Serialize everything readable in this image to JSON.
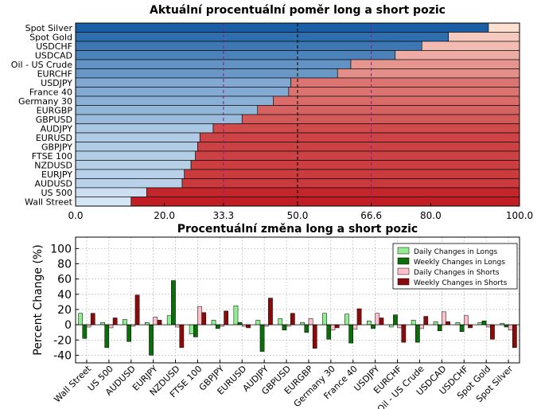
{
  "chart_data": [
    {
      "type": "bar",
      "orientation": "horizontal",
      "stacked": true,
      "title": "Aktuální procentuální poměr long a short pozic",
      "categories": [
        "Spot Silver",
        "Spot Gold",
        "USDCHF",
        "USDCAD",
        "Oil - US Crude",
        "EURCHF",
        "USDJPY",
        "France 40",
        "Germany 30",
        "EURGBP",
        "GBPUSD",
        "AUDJPY",
        "EURUSD",
        "GBPJPY",
        "FTSE 100",
        "NZDUSD",
        "EURJPY",
        "AUDUSD",
        "US 500",
        "Wall Street"
      ],
      "series": [
        {
          "values": [
            93.0,
            84.0,
            78.0,
            72.0,
            62.0,
            59.0,
            48.5,
            48.0,
            44.5,
            41.0,
            37.5,
            31.0,
            28.0,
            27.5,
            27.0,
            26.0,
            24.5,
            24.0,
            16.0,
            12.5
          ]
        },
        {
          "values": [
            7.0,
            16.0,
            22.0,
            28.0,
            38.0,
            41.0,
            51.5,
            52.0,
            55.5,
            59.0,
            62.5,
            69.0,
            72.0,
            72.5,
            73.0,
            74.0,
            75.5,
            76.0,
            84.0,
            87.5
          ]
        }
      ],
      "xlim": [
        0,
        100
      ],
      "xticks": [
        "0.0",
        "20.0",
        "33.3",
        "50.0",
        "66.6",
        "80.0",
        "100.0"
      ],
      "xtick_values": [
        0,
        20,
        33.3,
        50,
        66.6,
        80,
        100
      ],
      "reference_lines": [
        33.3,
        50,
        66.6
      ],
      "colors": {
        "long_dark": "#1a5fa6",
        "long_light": "#d4e5f4",
        "short_light": "#fde0d2",
        "short_dark": "#c11e24",
        "ref_purple": "#8a1a8a",
        "ref_black": "#000000"
      }
    },
    {
      "type": "bar",
      "title": "Procentuální změna long a short pozic",
      "ylabel": "Percent Change (%)",
      "ylim": [
        -50,
        115
      ],
      "yticks": [
        100,
        80,
        60,
        40,
        20,
        0,
        -20,
        -40
      ],
      "grid": true,
      "legend_position": "top-right",
      "categories": [
        "Wall Street",
        "US 500",
        "AUDUSD",
        "EURJPY",
        "NZDUSD",
        "FTSE 100",
        "GBPJPY",
        "EURUSD",
        "AUDJPY",
        "GBPUSD",
        "EURGBP",
        "Germany 30",
        "France 40",
        "USDJPY",
        "EURCHF",
        "Oil - US Crude",
        "USDCAD",
        "USDCHF",
        "Spot Gold",
        "Spot Silver"
      ],
      "series": [
        {
          "name": "Daily Changes in Longs",
          "color": "#90ee90",
          "values": [
            15,
            3,
            7,
            3,
            12,
            -12,
            6,
            25,
            6,
            8,
            3,
            15,
            14,
            5,
            -3,
            6,
            4,
            3,
            3,
            2
          ]
        },
        {
          "name": "Weekly Changes in Longs",
          "color": "#0a6e0a",
          "values": [
            -18,
            -30,
            -22,
            -40,
            58,
            -16,
            -5,
            3,
            -35,
            -7,
            -10,
            -19,
            -24,
            -5,
            13,
            -23,
            -8,
            -9,
            5,
            -3
          ]
        },
        {
          "name": "Daily Changes in Shorts",
          "color": "#ffc0cb",
          "values": [
            -3,
            -4,
            -2,
            10,
            -3,
            24,
            -2,
            -2,
            -2,
            -2,
            8,
            -7,
            -6,
            15,
            -4,
            -5,
            17,
            12,
            -3,
            -7
          ]
        },
        {
          "name": "Weekly Changes in Shorts",
          "color": "#8b0a0a",
          "values": [
            15,
            9,
            39,
            6,
            -30,
            16,
            18,
            -4,
            35,
            15,
            -31,
            -4,
            21,
            9,
            -23,
            11,
            4,
            -4,
            -19,
            -30
          ]
        }
      ]
    }
  ]
}
